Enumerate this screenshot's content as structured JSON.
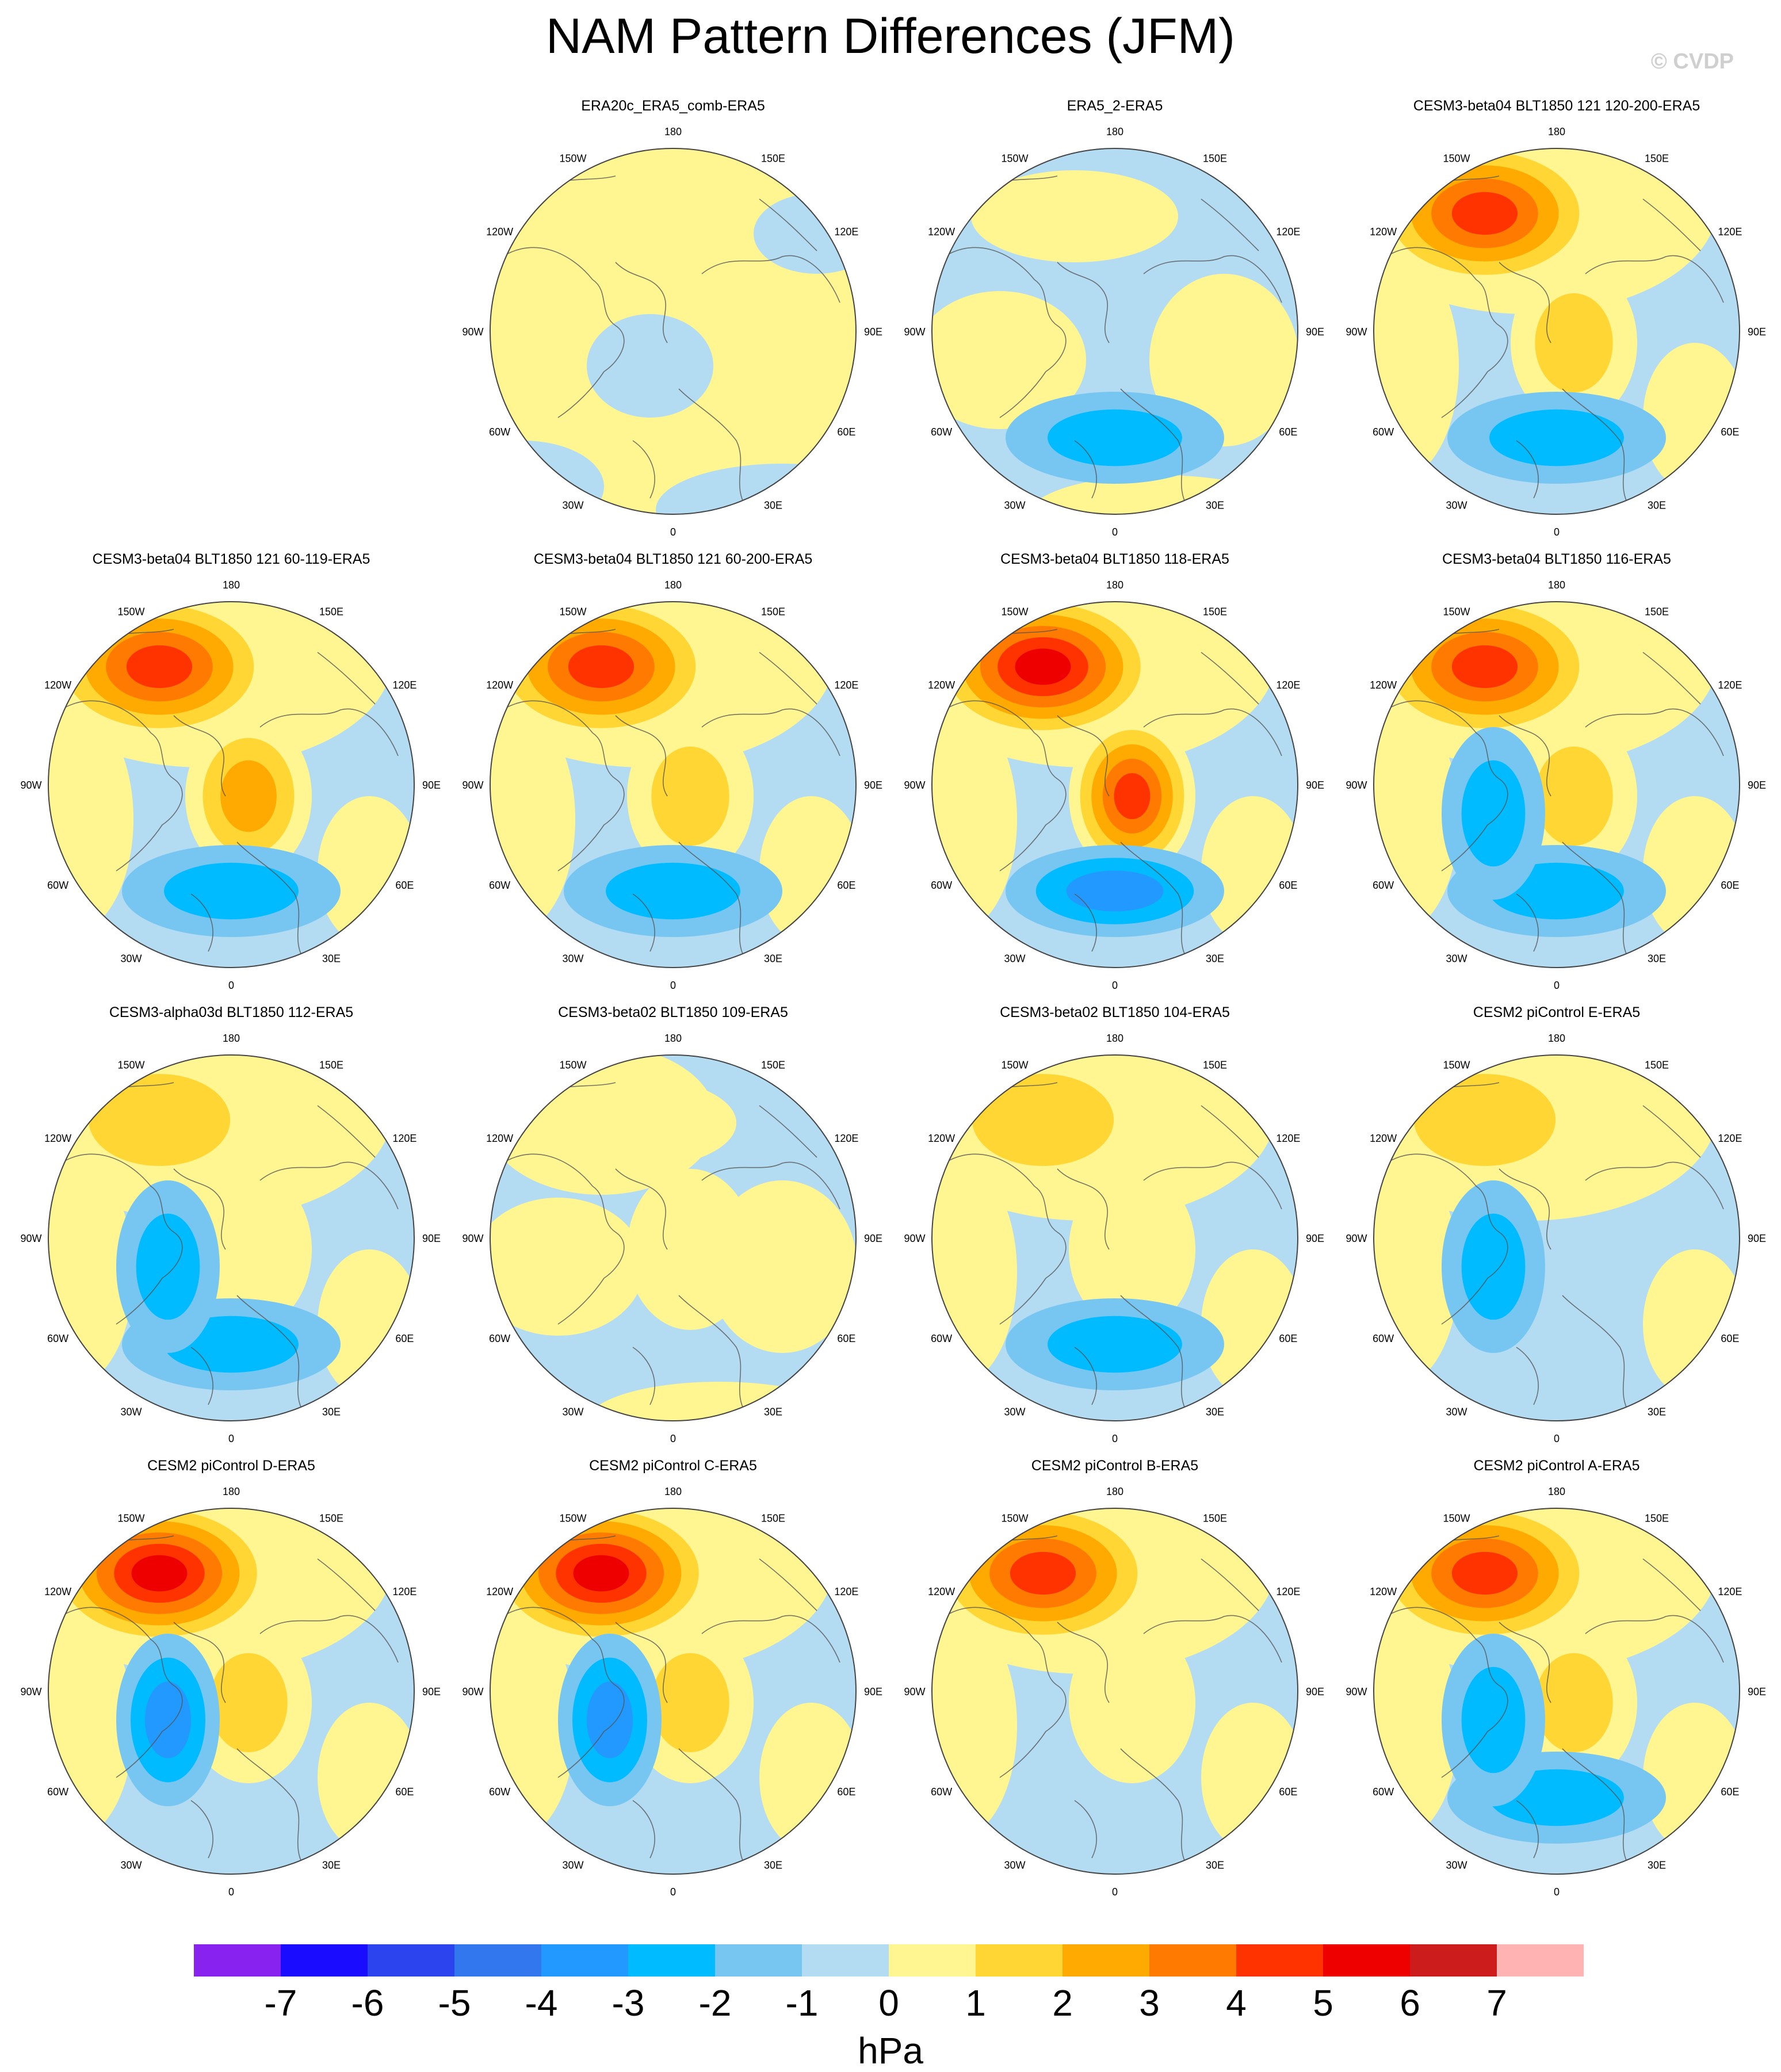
{
  "title": "NAM Pattern Differences (JFM)",
  "watermark": "© CVDP",
  "colorbar": {
    "unit": "hPa",
    "levels": [
      "-7",
      "-6",
      "-5",
      "-4",
      "-3",
      "-2",
      "-1",
      "0",
      "1",
      "2",
      "3",
      "4",
      "5",
      "6",
      "7"
    ],
    "colors": [
      "#8822ee",
      "#1a0dff",
      "#2c44ee",
      "#3377ee",
      "#2299ff",
      "#00bbff",
      "#77c6f2",
      "#b3dcf2",
      "#fff591",
      "#ffd633",
      "#ffaa00",
      "#ff7a00",
      "#ff3300",
      "#ee0000",
      "#cc1c1c",
      "#ffb3b3"
    ]
  },
  "map_labels": {
    "top": "180",
    "bottom": "0",
    "upper_left": "150W",
    "upper_right": "150E",
    "left_upper": "120W",
    "right_upper": "120E",
    "left": "90W",
    "right": "90E",
    "left_lower": "60W",
    "right_lower": "60E",
    "lower_left": "30W",
    "lower_right": "30E"
  },
  "panels": [
    {
      "title": "ERA20c_ERA5_comb-ERA5",
      "pacific_max": 0,
      "atlantic_max": 0,
      "europe_min": 0,
      "arctic_min": 0,
      "base": "yellow"
    },
    {
      "title": "ERA5_2-ERA5",
      "pacific_max": 0,
      "atlantic_max": 0,
      "europe_min": -2,
      "arctic_min": 0,
      "base": "blue"
    },
    {
      "title": "CESM3-beta04 BLT1850 121 120-200-ERA5",
      "pacific_max": 5,
      "atlantic_max": 2,
      "europe_min": -2,
      "arctic_min": 0,
      "base": "mixed"
    },
    {
      "title": "CESM3-beta04 BLT1850 121 60-119-ERA5",
      "pacific_max": 5,
      "atlantic_max": 3,
      "europe_min": -2,
      "arctic_min": 0,
      "base": "mixed"
    },
    {
      "title": "CESM3-beta04 BLT1850 121 60-200-ERA5",
      "pacific_max": 5,
      "atlantic_max": 2,
      "europe_min": -2,
      "arctic_min": 0,
      "base": "mixed"
    },
    {
      "title": "CESM3-beta04 BLT1850 118-ERA5",
      "pacific_max": 6,
      "atlantic_max": 5,
      "europe_min": -3,
      "arctic_min": 0,
      "base": "mixed"
    },
    {
      "title": "CESM3-beta04 BLT1850 116-ERA5",
      "pacific_max": 5,
      "atlantic_max": 2,
      "europe_min": -2,
      "arctic_min": -2,
      "base": "mixed"
    },
    {
      "title": "CESM3-alpha03d BLT1850 112-ERA5",
      "pacific_max": 2,
      "atlantic_max": 1,
      "europe_min": -2,
      "arctic_min": -2,
      "base": "mixed"
    },
    {
      "title": "CESM3-beta02 BLT1850 109-ERA5",
      "pacific_max": 1,
      "atlantic_max": 1,
      "europe_min": 0,
      "arctic_min": 0,
      "base": "blue"
    },
    {
      "title": "CESM3-beta02 BLT1850 104-ERA5",
      "pacific_max": 2,
      "atlantic_max": 1,
      "europe_min": -2,
      "arctic_min": 0,
      "base": "mixed"
    },
    {
      "title": "CESM2 piControl E-ERA5",
      "pacific_max": 2,
      "atlantic_max": 0,
      "europe_min": 0,
      "arctic_min": -2,
      "base": "mixed"
    },
    {
      "title": "CESM2 piControl D-ERA5",
      "pacific_max": 6,
      "atlantic_max": 2,
      "europe_min": 0,
      "arctic_min": -3,
      "base": "mixed"
    },
    {
      "title": "CESM2 piControl C-ERA5",
      "pacific_max": 6,
      "atlantic_max": 2,
      "europe_min": 0,
      "arctic_min": -3,
      "base": "mixed"
    },
    {
      "title": "CESM2 piControl B-ERA5",
      "pacific_max": 5,
      "atlantic_max": 1,
      "europe_min": 0,
      "arctic_min": 0,
      "base": "mixed"
    },
    {
      "title": "CESM2 piControl A-ERA5",
      "pacific_max": 5,
      "atlantic_max": 2,
      "europe_min": -2,
      "arctic_min": -2,
      "base": "mixed"
    }
  ]
}
